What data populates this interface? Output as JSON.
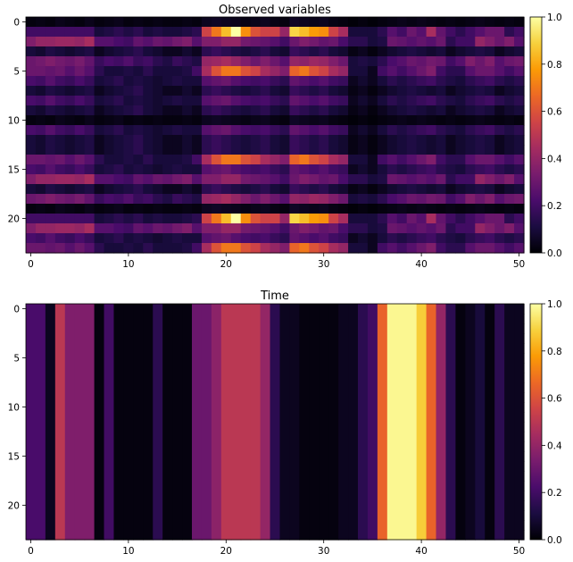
{
  "colormap": {
    "name": "inferno",
    "stops": [
      "#000004",
      "#1b0c41",
      "#4a0c6b",
      "#781c6d",
      "#a52c60",
      "#cf4446",
      "#ed6925",
      "#fb9b06",
      "#f7d13d",
      "#fcffa4"
    ]
  },
  "chart_data": [
    {
      "type": "heatmap",
      "title": "Observed variables",
      "xlabel": "",
      "ylabel": "",
      "xlim": [
        -0.5,
        50.5
      ],
      "ylim": [
        23.5,
        -0.5
      ],
      "xticks": [
        0,
        10,
        20,
        30,
        40,
        50
      ],
      "yticks": [
        0,
        5,
        10,
        15,
        20
      ],
      "colorbar": {
        "range": [
          0,
          1
        ],
        "ticks": [
          "0.0",
          "0.2",
          "0.4",
          "0.6",
          "0.8",
          "1.0"
        ]
      },
      "n_columns": 51,
      "row_profiles": {
        "burst_strong": [
          0.2,
          0.2,
          0.2,
          0.2,
          0.2,
          0.2,
          0.2,
          0.1,
          0.12,
          0.15,
          0.12,
          0.15,
          0.1,
          0.12,
          0.1,
          0.1,
          0.12,
          0.15,
          0.55,
          0.7,
          0.85,
          1.0,
          0.75,
          0.6,
          0.55,
          0.55,
          0.4,
          0.9,
          0.85,
          0.78,
          0.75,
          0.55,
          0.45,
          0.1,
          0.1,
          0.1,
          0.15,
          0.25,
          0.2,
          0.3,
          0.25,
          0.45,
          0.28,
          0.2,
          0.15,
          0.2,
          0.25,
          0.3,
          0.3,
          0.15,
          0.2
        ],
        "burst_mid": [
          0.3,
          0.3,
          0.28,
          0.3,
          0.25,
          0.3,
          0.25,
          0.15,
          0.1,
          0.1,
          0.12,
          0.1,
          0.15,
          0.1,
          0.1,
          0.1,
          0.12,
          0.2,
          0.45,
          0.6,
          0.7,
          0.7,
          0.6,
          0.55,
          0.45,
          0.4,
          0.35,
          0.65,
          0.7,
          0.6,
          0.55,
          0.45,
          0.4,
          0.1,
          0.1,
          0.05,
          0.2,
          0.25,
          0.2,
          0.25,
          0.3,
          0.35,
          0.2,
          0.15,
          0.15,
          0.25,
          0.3,
          0.3,
          0.25,
          0.2,
          0.25
        ],
        "pink": [
          0.35,
          0.4,
          0.4,
          0.42,
          0.42,
          0.4,
          0.45,
          0.25,
          0.25,
          0.22,
          0.2,
          0.28,
          0.25,
          0.3,
          0.28,
          0.32,
          0.35,
          0.25,
          0.35,
          0.35,
          0.4,
          0.4,
          0.32,
          0.3,
          0.28,
          0.25,
          0.2,
          0.3,
          0.35,
          0.32,
          0.28,
          0.3,
          0.22,
          0.15,
          0.15,
          0.1,
          0.12,
          0.3,
          0.28,
          0.25,
          0.28,
          0.25,
          0.3,
          0.15,
          0.2,
          0.2,
          0.4,
          0.35,
          0.3,
          0.35,
          0.25
        ],
        "purple_mid": [
          0.3,
          0.32,
          0.35,
          0.32,
          0.3,
          0.33,
          0.28,
          0.18,
          0.22,
          0.2,
          0.24,
          0.18,
          0.2,
          0.15,
          0.12,
          0.18,
          0.15,
          0.12,
          0.4,
          0.42,
          0.45,
          0.4,
          0.35,
          0.3,
          0.35,
          0.3,
          0.25,
          0.4,
          0.38,
          0.42,
          0.4,
          0.35,
          0.3,
          0.1,
          0.12,
          0.1,
          0.15,
          0.22,
          0.25,
          0.3,
          0.28,
          0.32,
          0.3,
          0.2,
          0.25,
          0.35,
          0.3,
          0.35,
          0.25,
          0.3,
          0.32
        ],
        "purple_low": [
          0.22,
          0.2,
          0.25,
          0.2,
          0.18,
          0.22,
          0.18,
          0.1,
          0.12,
          0.15,
          0.1,
          0.12,
          0.1,
          0.08,
          0.1,
          0.12,
          0.1,
          0.1,
          0.25,
          0.28,
          0.3,
          0.25,
          0.22,
          0.2,
          0.22,
          0.18,
          0.15,
          0.28,
          0.25,
          0.22,
          0.25,
          0.2,
          0.18,
          0.05,
          0.08,
          0.05,
          0.1,
          0.15,
          0.12,
          0.15,
          0.18,
          0.2,
          0.15,
          0.12,
          0.1,
          0.15,
          0.18,
          0.2,
          0.15,
          0.12,
          0.15
        ],
        "dark": [
          0.1,
          0.08,
          0.12,
          0.1,
          0.08,
          0.1,
          0.12,
          0.05,
          0.08,
          0.1,
          0.12,
          0.15,
          0.1,
          0.08,
          0.05,
          0.05,
          0.08,
          0.05,
          0.15,
          0.18,
          0.15,
          0.12,
          0.1,
          0.12,
          0.15,
          0.1,
          0.08,
          0.18,
          0.15,
          0.12,
          0.15,
          0.1,
          0.08,
          0.03,
          0.05,
          0.02,
          0.05,
          0.08,
          0.1,
          0.12,
          0.1,
          0.08,
          0.1,
          0.05,
          0.08,
          0.1,
          0.12,
          0.1,
          0.05,
          0.08,
          0.1
        ],
        "black": [
          0.02,
          0.03,
          0.02,
          0.04,
          0.03,
          0.02,
          0.04,
          0.02,
          0.03,
          0.04,
          0.02,
          0.03,
          0.02,
          0.03,
          0.02,
          0.02,
          0.03,
          0.02,
          0.05,
          0.06,
          0.05,
          0.04,
          0.03,
          0.04,
          0.05,
          0.03,
          0.02,
          0.06,
          0.05,
          0.04,
          0.05,
          0.03,
          0.02,
          0.01,
          0.02,
          0.01,
          0.02,
          0.03,
          0.04,
          0.03,
          0.04,
          0.03,
          0.02,
          0.03,
          0.02,
          0.03,
          0.04,
          0.03,
          0.02,
          0.03,
          0.02
        ]
      },
      "rows": [
        "black",
        "burst_strong",
        "pink",
        "dark",
        "purple_mid",
        "burst_mid",
        "purple_low",
        "dark",
        "purple_low",
        "dark",
        "black",
        "purple_low",
        "dark",
        "dark",
        "burst_mid",
        "purple_low",
        "pink",
        "dark",
        "purple_mid",
        "black",
        "burst_strong",
        "pink",
        "purple_low",
        "burst_mid"
      ]
    },
    {
      "type": "heatmap",
      "title": "Time",
      "xlabel": "",
      "ylabel": "",
      "xlim": [
        -0.5,
        50.5
      ],
      "ylim": [
        23.5,
        -0.5
      ],
      "xticks": [
        0,
        10,
        20,
        30,
        40,
        50
      ],
      "yticks": [
        0,
        5,
        10,
        15,
        20
      ],
      "colorbar": {
        "range": [
          0,
          1
        ],
        "ticks": [
          "0.0",
          "0.2",
          "0.4",
          "0.6",
          "0.8",
          "1.0"
        ]
      },
      "n_rows": 24,
      "column_values": [
        0.22,
        0.22,
        0.05,
        0.5,
        0.35,
        0.35,
        0.35,
        0.02,
        0.2,
        0.02,
        0.02,
        0.02,
        0.02,
        0.15,
        0.02,
        0.02,
        0.02,
        0.3,
        0.3,
        0.38,
        0.5,
        0.5,
        0.5,
        0.5,
        0.4,
        0.15,
        0.05,
        0.05,
        0.02,
        0.02,
        0.02,
        0.02,
        0.05,
        0.05,
        0.15,
        0.2,
        0.65,
        0.98,
        0.98,
        0.98,
        0.88,
        0.65,
        0.4,
        0.15,
        0.02,
        0.05,
        0.1,
        0.02,
        0.15,
        0.05,
        0.05
      ]
    }
  ]
}
